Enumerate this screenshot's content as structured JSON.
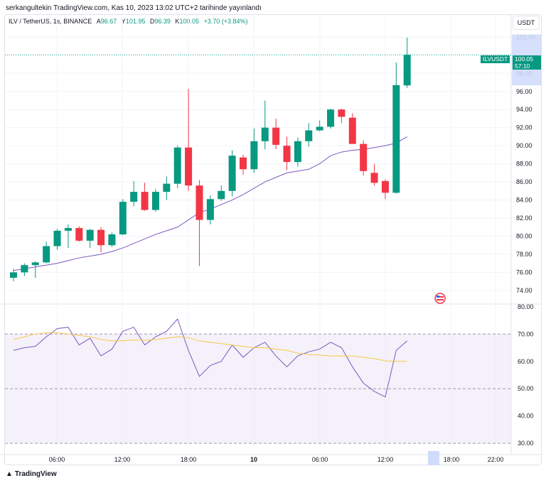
{
  "header": {
    "published": "serkangultekin TradingView.com, Kas 10, 2023 13:02 UTC+2 tarihinde yayınlandı"
  },
  "legend": {
    "symbol": "ILV / TetherUS, 1s, BINANCE",
    "open_label": "A",
    "open": "96.67",
    "high_label": "Y",
    "high": "101.95",
    "low_label": "D",
    "low": "96.39",
    "close_label": "K",
    "close": "100.05",
    "change": "+3.70 (+3.84%)"
  },
  "currency_button": "USDT",
  "price_tag": {
    "symbol": "ILVUSDT",
    "price": "100.05",
    "countdown": "57:10"
  },
  "footer": {
    "brand": "TradingView"
  },
  "colors": {
    "up": "#089981",
    "down": "#f23645",
    "ma": "#7e57c2",
    "rsi": "#7e57c2",
    "rsi_ma": "#f7c948",
    "band": "#ede7f6"
  },
  "chart_data": [
    {
      "type": "candlestick",
      "title": "ILV / TetherUS, 1s, BINANCE",
      "ylim": [
        72.5,
        102.5
      ],
      "y_ticks": [
        "74.00",
        "76.00",
        "78.00",
        "80.00",
        "82.00",
        "84.00",
        "86.00",
        "88.00",
        "90.00",
        "92.00",
        "94.00",
        "96.00",
        "98.00",
        "102.00"
      ],
      "x_ticks": [
        "06:00",
        "12:00",
        "18:00",
        "10",
        "06:00",
        "12:00",
        "18:00",
        "22:00"
      ],
      "candles": [
        {
          "o": 75.4,
          "h": 76.4,
          "l": 75.0,
          "c": 76.0
        },
        {
          "o": 76.0,
          "h": 77.0,
          "l": 75.6,
          "c": 76.8
        },
        {
          "o": 76.8,
          "h": 77.2,
          "l": 75.4,
          "c": 77.1
        },
        {
          "o": 77.1,
          "h": 79.4,
          "l": 77.0,
          "c": 78.9
        },
        {
          "o": 78.9,
          "h": 80.8,
          "l": 78.5,
          "c": 80.6
        },
        {
          "o": 80.6,
          "h": 81.3,
          "l": 78.7,
          "c": 80.9
        },
        {
          "o": 80.9,
          "h": 81.1,
          "l": 79.4,
          "c": 79.5
        },
        {
          "o": 79.5,
          "h": 80.8,
          "l": 78.7,
          "c": 80.7
        },
        {
          "o": 80.7,
          "h": 81.0,
          "l": 78.2,
          "c": 79.0
        },
        {
          "o": 79.0,
          "h": 80.4,
          "l": 78.8,
          "c": 80.2
        },
        {
          "o": 80.2,
          "h": 84.1,
          "l": 80.1,
          "c": 83.8
        },
        {
          "o": 83.8,
          "h": 86.1,
          "l": 83.3,
          "c": 84.9
        },
        {
          "o": 84.9,
          "h": 85.9,
          "l": 82.8,
          "c": 82.9
        },
        {
          "o": 82.9,
          "h": 85.2,
          "l": 82.7,
          "c": 84.9
        },
        {
          "o": 84.9,
          "h": 86.6,
          "l": 84.0,
          "c": 85.8
        },
        {
          "o": 85.8,
          "h": 90.0,
          "l": 85.3,
          "c": 89.8
        },
        {
          "o": 89.8,
          "h": 96.3,
          "l": 85.0,
          "c": 85.6
        },
        {
          "o": 85.6,
          "h": 86.2,
          "l": 76.7,
          "c": 81.8
        },
        {
          "o": 81.8,
          "h": 84.5,
          "l": 81.3,
          "c": 84.1
        },
        {
          "o": 84.1,
          "h": 85.6,
          "l": 83.9,
          "c": 85.0
        },
        {
          "o": 85.0,
          "h": 89.5,
          "l": 84.4,
          "c": 88.9
        },
        {
          "o": 88.7,
          "h": 89.0,
          "l": 86.8,
          "c": 87.4
        },
        {
          "o": 87.4,
          "h": 91.9,
          "l": 87.0,
          "c": 90.5
        },
        {
          "o": 90.5,
          "h": 95.0,
          "l": 89.6,
          "c": 92.0
        },
        {
          "o": 92.0,
          "h": 93.0,
          "l": 89.6,
          "c": 90.1
        },
        {
          "o": 90.0,
          "h": 91.0,
          "l": 87.3,
          "c": 88.2
        },
        {
          "o": 88.2,
          "h": 90.9,
          "l": 87.7,
          "c": 90.5
        },
        {
          "o": 90.5,
          "h": 92.5,
          "l": 89.9,
          "c": 91.7
        },
        {
          "o": 91.7,
          "h": 92.8,
          "l": 91.6,
          "c": 92.1
        },
        {
          "o": 92.1,
          "h": 94.1,
          "l": 91.9,
          "c": 94.0
        },
        {
          "o": 94.0,
          "h": 94.1,
          "l": 92.5,
          "c": 93.2
        },
        {
          "o": 93.1,
          "h": 93.6,
          "l": 90.2,
          "c": 90.2
        },
        {
          "o": 90.2,
          "h": 90.6,
          "l": 86.7,
          "c": 87.2
        },
        {
          "o": 87.0,
          "h": 88.0,
          "l": 85.6,
          "c": 85.9
        },
        {
          "o": 86.1,
          "h": 86.3,
          "l": 84.1,
          "c": 84.8
        },
        {
          "o": 84.8,
          "h": 99.2,
          "l": 84.7,
          "c": 96.7
        },
        {
          "o": 96.67,
          "h": 101.95,
          "l": 96.39,
          "c": 100.05
        }
      ],
      "moving_average": [
        76.2,
        76.4,
        76.6,
        76.8,
        77.0,
        77.3,
        77.6,
        77.8,
        78.0,
        78.3,
        78.7,
        79.2,
        79.7,
        80.2,
        80.6,
        81.0,
        81.8,
        82.6,
        83.0,
        83.5,
        84.0,
        84.6,
        85.3,
        86.0,
        86.5,
        87.0,
        87.2,
        87.4,
        88.0,
        88.9,
        89.3,
        89.5,
        89.6,
        89.8,
        90.0,
        90.3,
        91.0
      ]
    },
    {
      "type": "line",
      "title": "RSI",
      "ylim": [
        29,
        81
      ],
      "y_ticks": [
        "80.00",
        "70.00",
        "60.00",
        "50.00",
        "40.00",
        "30.00"
      ],
      "band": [
        30,
        70
      ],
      "series": [
        {
          "values": [
            64,
            65,
            65.5,
            69,
            72,
            72.5,
            66,
            68.5,
            62,
            64.5,
            71,
            72.5,
            66,
            69,
            71,
            75.5,
            64,
            54.5,
            58.5,
            60,
            66,
            61.5,
            65,
            67,
            62,
            58,
            62,
            63.5,
            64.5,
            67,
            65,
            58,
            52,
            49,
            47,
            64,
            67.5
          ]
        },
        {
          "values": [
            68,
            69,
            70,
            70.5,
            70.5,
            70,
            69.5,
            69,
            68,
            67.5,
            67.5,
            67.8,
            67.7,
            68,
            68.5,
            69,
            68.7,
            67.5,
            67,
            66.5,
            66,
            65.5,
            65,
            65,
            64.5,
            64,
            63,
            62.5,
            62.3,
            62,
            62,
            62,
            61.5,
            61,
            60.2,
            60,
            60
          ]
        }
      ]
    }
  ]
}
